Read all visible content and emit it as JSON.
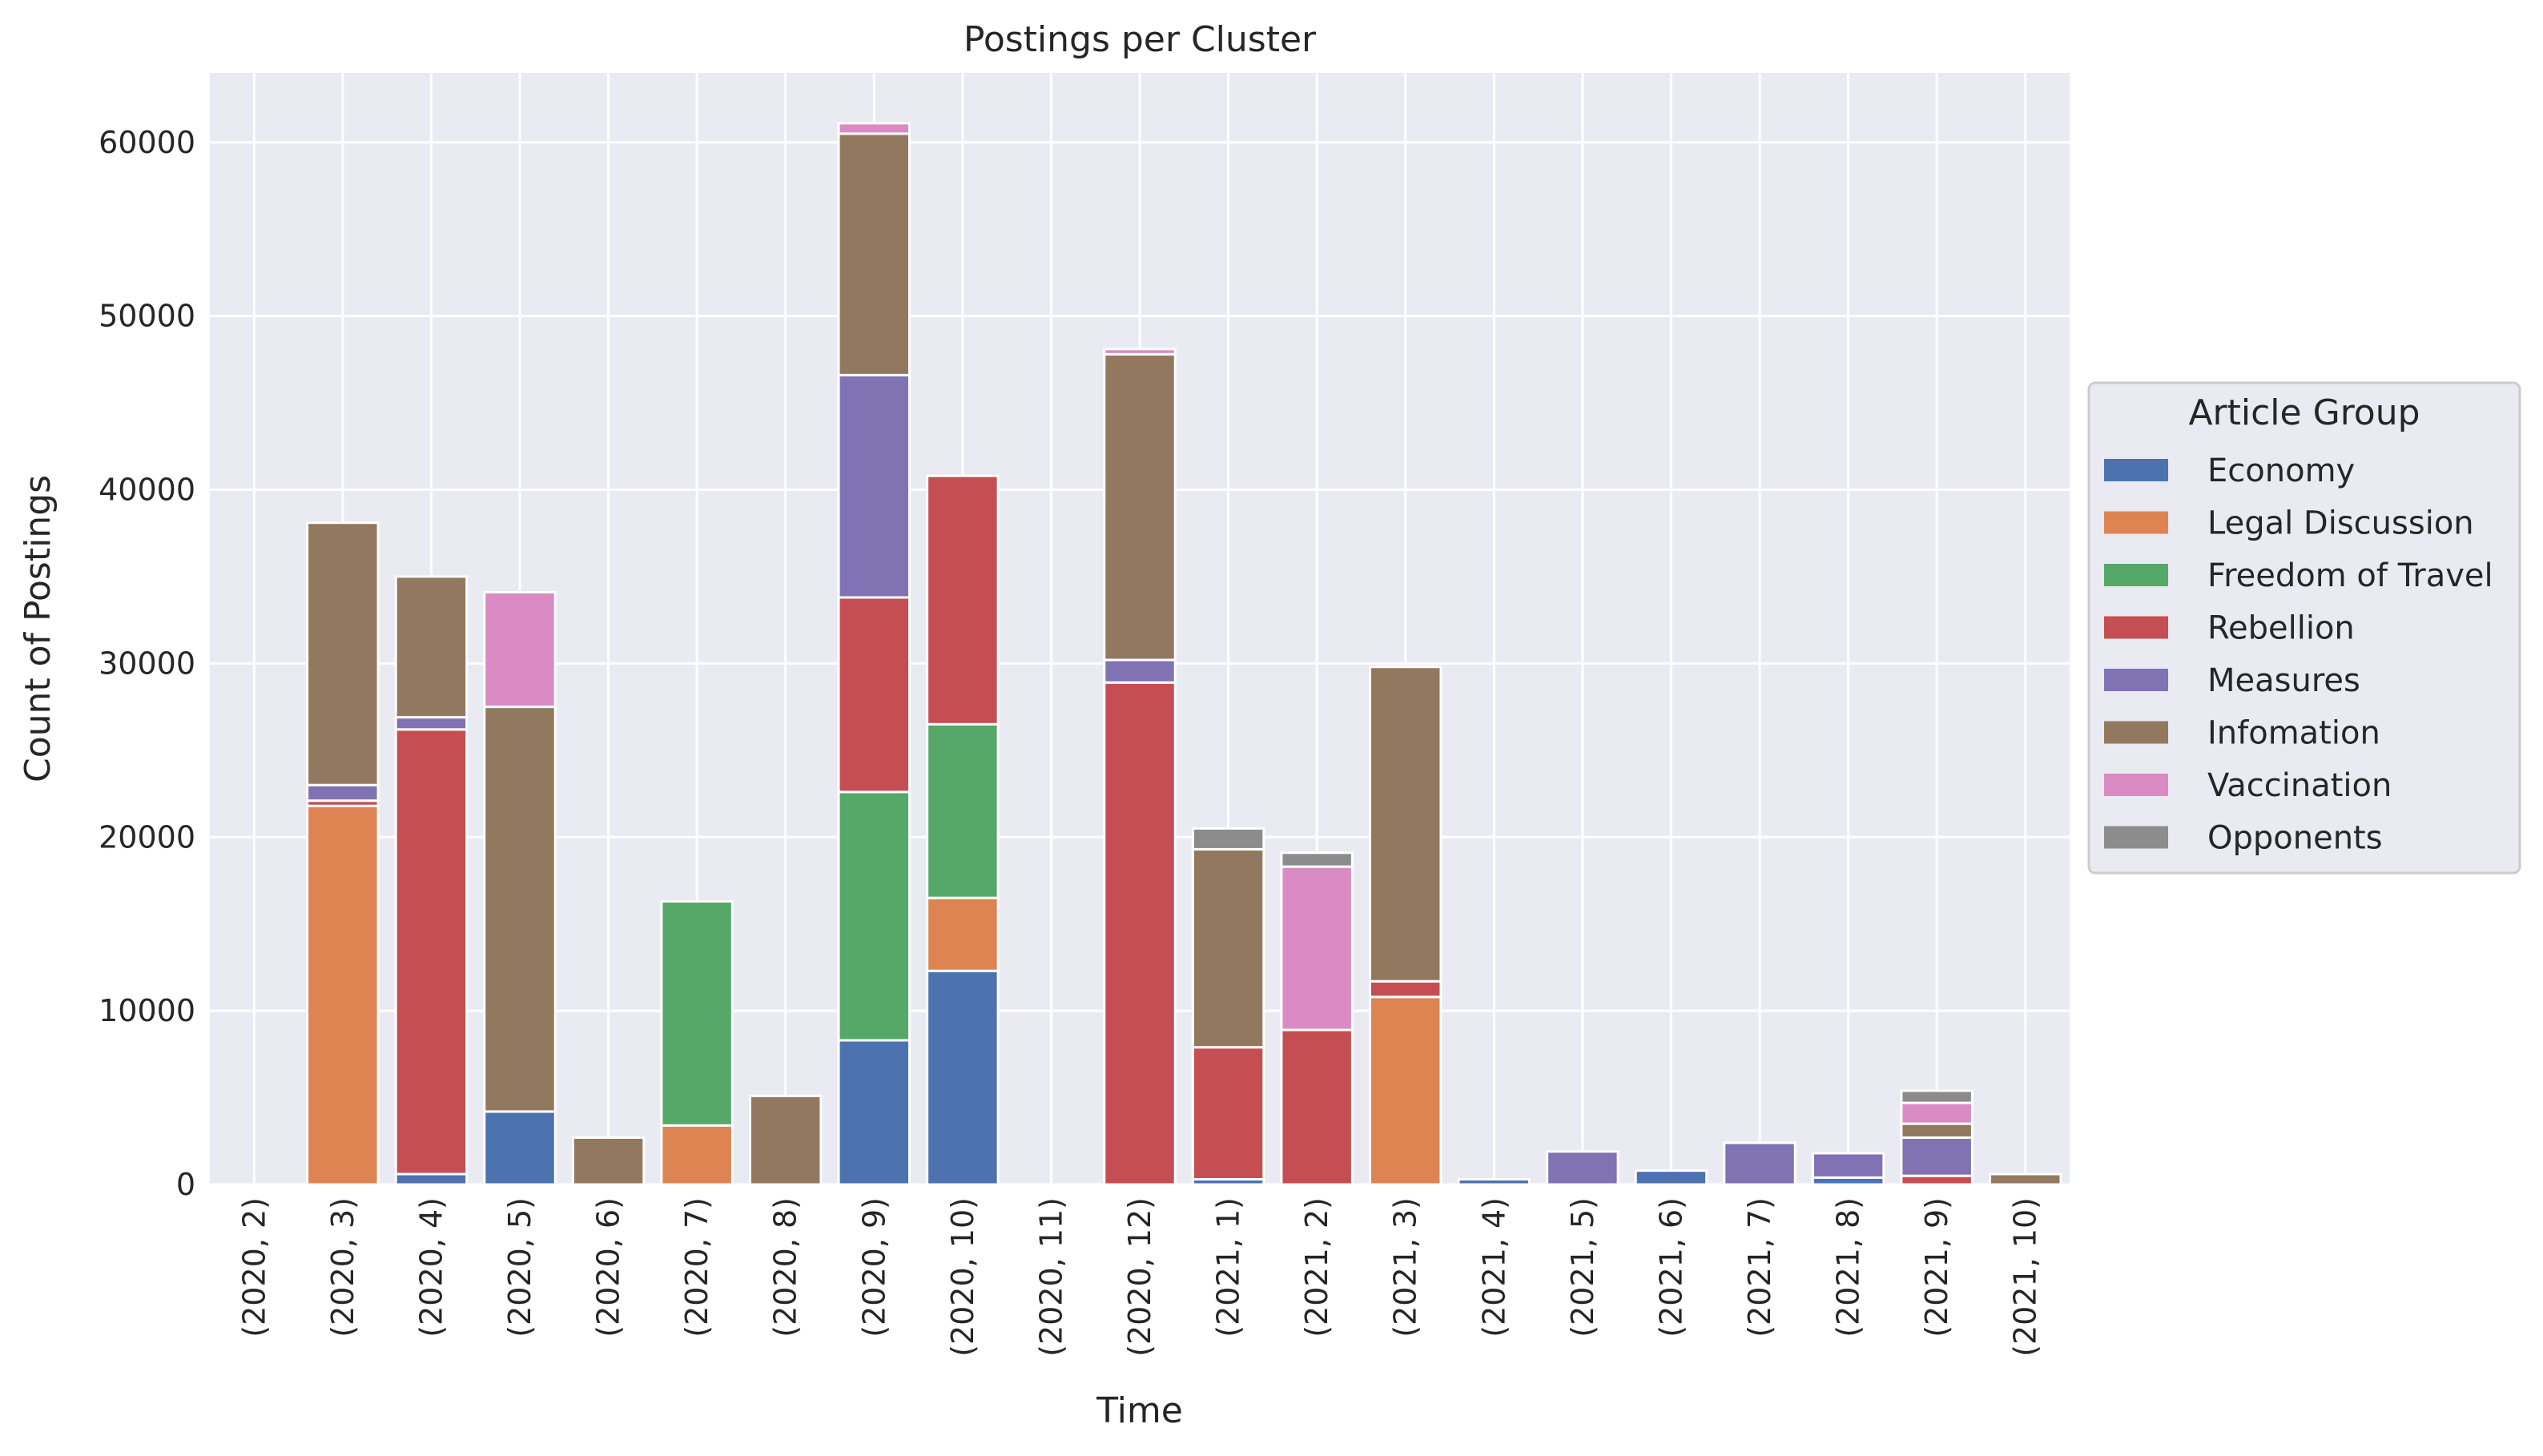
{
  "chart_data": {
    "type": "bar",
    "stacked": true,
    "title": "Postings per Cluster",
    "xlabel": "Time",
    "ylabel": "Count of Postings",
    "ylim": [
      0,
      64000
    ],
    "yticks": [
      0,
      10000,
      20000,
      30000,
      40000,
      50000,
      60000
    ],
    "grid": true,
    "legend_title": "Article Group",
    "legend_position": "right",
    "categories": [
      "(2020, 2)",
      "(2020, 3)",
      "(2020, 4)",
      "(2020, 5)",
      "(2020, 6)",
      "(2020, 7)",
      "(2020, 8)",
      "(2020, 9)",
      "(2020, 10)",
      "(2020, 11)",
      "(2020, 12)",
      "(2021, 1)",
      "(2021, 2)",
      "(2021, 3)",
      "(2021, 4)",
      "(2021, 5)",
      "(2021, 6)",
      "(2021, 7)",
      "(2021, 8)",
      "(2021, 9)",
      "(2021, 10)"
    ],
    "series": [
      {
        "name": "Economy",
        "color": "#4c72b0",
        "values": [
          0,
          0,
          600,
          4200,
          0,
          0,
          0,
          8300,
          12300,
          0,
          0,
          300,
          0,
          0,
          300,
          0,
          800,
          0,
          400,
          0,
          0
        ]
      },
      {
        "name": "Legal Discussion",
        "color": "#dd8452",
        "values": [
          0,
          21800,
          0,
          0,
          0,
          3400,
          0,
          0,
          4200,
          0,
          0,
          0,
          0,
          10800,
          0,
          0,
          0,
          0,
          0,
          0,
          0
        ]
      },
      {
        "name": "Freedom of Travel",
        "color": "#55a868",
        "values": [
          0,
          0,
          0,
          0,
          0,
          12900,
          0,
          14300,
          10000,
          0,
          0,
          0,
          0,
          0,
          0,
          0,
          0,
          0,
          0,
          0,
          0
        ]
      },
      {
        "name": "Rebellion",
        "color": "#c44e52",
        "values": [
          0,
          300,
          25600,
          0,
          0,
          0,
          0,
          11200,
          14300,
          0,
          28900,
          7600,
          8900,
          900,
          0,
          0,
          0,
          0,
          0,
          500,
          0
        ]
      },
      {
        "name": "Measures",
        "color": "#8172b3",
        "values": [
          0,
          900,
          700,
          0,
          0,
          0,
          0,
          12800,
          0,
          0,
          1300,
          0,
          0,
          0,
          0,
          1900,
          0,
          2400,
          1400,
          2200,
          0
        ]
      },
      {
        "name": "Infomation",
        "color": "#937860",
        "values": [
          0,
          15100,
          8100,
          23300,
          2700,
          0,
          5100,
          13900,
          0,
          0,
          17600,
          11400,
          0,
          18100,
          0,
          0,
          0,
          0,
          0,
          800,
          600
        ]
      },
      {
        "name": "Vaccination",
        "color": "#da8bc3",
        "values": [
          0,
          0,
          0,
          6600,
          0,
          0,
          0,
          600,
          0,
          0,
          300,
          0,
          9400,
          0,
          0,
          0,
          0,
          0,
          0,
          1200,
          0
        ]
      },
      {
        "name": "Opponents",
        "color": "#8c8c8c",
        "values": [
          0,
          0,
          0,
          0,
          0,
          0,
          0,
          0,
          0,
          0,
          0,
          1200,
          800,
          0,
          0,
          0,
          0,
          0,
          0,
          700,
          0
        ]
      }
    ]
  }
}
